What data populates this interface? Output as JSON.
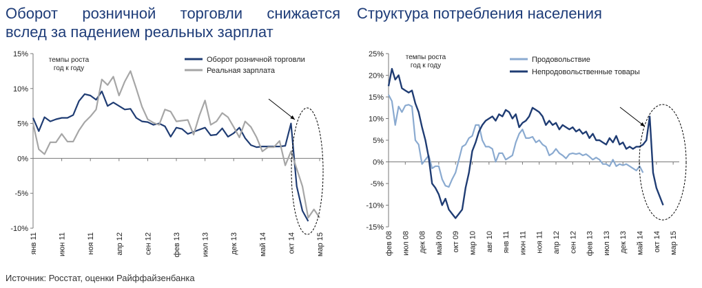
{
  "titles": {
    "left_line1": "Оборот розничной торговли снижается",
    "left_line2": "вслед за падением реальных зарплат",
    "right": "Структура потребления населения"
  },
  "source": "Источник: Росстат, оценки Райффайзенбанка",
  "colors": {
    "dark": "#1f3c73",
    "gray": "#a6a6a6",
    "light": "#8aaad0"
  },
  "chart_data": [
    {
      "type": "line",
      "title": "Оборот розничной торговли снижается вслед за падением реальных зарплат",
      "note_line1": "темпы роста",
      "note_line2": "год к году",
      "ylim": [
        -10,
        15
      ],
      "yticks": [
        -10,
        -5,
        0,
        5,
        10,
        15
      ],
      "ytick_labels": [
        "-10%",
        "-5%",
        "0%",
        "5%",
        "10%",
        "15%"
      ],
      "xticks": [
        {
          "i": 0,
          "label": "янв 11"
        },
        {
          "i": 5,
          "label": "июн 11"
        },
        {
          "i": 10,
          "label": "ноя 11"
        },
        {
          "i": 15,
          "label": "апр 12"
        },
        {
          "i": 20,
          "label": "сен 12"
        },
        {
          "i": 25,
          "label": "фев 13"
        },
        {
          "i": 30,
          "label": "июл 13"
        },
        {
          "i": 35,
          "label": "дек 13"
        },
        {
          "i": 40,
          "label": "май 14"
        },
        {
          "i": 45,
          "label": "окт 14"
        },
        {
          "i": 50,
          "label": "мар 15"
        }
      ],
      "series": [
        {
          "name": "Оборот розничной торговли",
          "color": "#1f3c73",
          "width": 2.2,
          "values": [
            5.8,
            3.9,
            5.9,
            5.3,
            5.6,
            5.8,
            5.8,
            6.2,
            8.2,
            9.2,
            9.0,
            8.4,
            9.6,
            7.5,
            8.0,
            7.5,
            7.0,
            7.1,
            5.8,
            5.3,
            5.2,
            4.8,
            5.0,
            4.6,
            3.1,
            4.4,
            4.2,
            3.5,
            3.8,
            4.1,
            4.4,
            3.3,
            3.4,
            4.3,
            3.1,
            3.6,
            4.4,
            2.9,
            1.9,
            1.6,
            1.7,
            1.7,
            1.7,
            1.7,
            1.8,
            5.0,
            -4.0,
            -7.5,
            -9.0
          ]
        },
        {
          "name": "Реальная зарплата",
          "color": "#a6a6a6",
          "width": 2.2,
          "values": [
            5.0,
            1.3,
            0.6,
            2.3,
            2.3,
            3.5,
            2.4,
            2.4,
            4.0,
            5.2,
            6.0,
            7.0,
            11.3,
            10.5,
            11.7,
            9.0,
            11.0,
            12.5,
            10.0,
            7.4,
            5.6,
            5.1,
            4.8,
            7.0,
            6.7,
            5.3,
            5.4,
            5.5,
            3.4,
            6.1,
            8.3,
            4.8,
            5.3,
            6.5,
            5.9,
            4.5,
            3.0,
            5.3,
            4.5,
            3.0,
            1.0,
            1.6,
            1.6,
            2.5,
            -1.0,
            1.0,
            -1.5,
            -4.0,
            -8.5,
            -7.3,
            -8.5
          ]
        }
      ]
    },
    {
      "type": "line",
      "title": "Структура потребления населения",
      "note_line1": "темпы роста",
      "note_line2": "год к году",
      "ylim": [
        -15,
        25
      ],
      "yticks": [
        -15,
        -10,
        -5,
        0,
        5,
        10,
        15,
        20,
        25
      ],
      "ytick_labels": [
        "-15%",
        "-10%",
        "-5%",
        "0%",
        "5%",
        "10%",
        "15%",
        "20%",
        "25%"
      ],
      "xticks": [
        {
          "i": 0,
          "label": "фев 08"
        },
        {
          "i": 5,
          "label": "июл 08"
        },
        {
          "i": 10,
          "label": "дек 08"
        },
        {
          "i": 15,
          "label": "май 09"
        },
        {
          "i": 20,
          "label": "окт 09"
        },
        {
          "i": 25,
          "label": "мар 10"
        },
        {
          "i": 30,
          "label": "авг 10"
        },
        {
          "i": 35,
          "label": "янв 11"
        },
        {
          "i": 40,
          "label": "июн 11"
        },
        {
          "i": 45,
          "label": "ноя 11"
        },
        {
          "i": 50,
          "label": "апр 12"
        },
        {
          "i": 55,
          "label": "сен 12"
        },
        {
          "i": 60,
          "label": "фев 13"
        },
        {
          "i": 65,
          "label": "июл 13"
        },
        {
          "i": 70,
          "label": "дек 13"
        },
        {
          "i": 75,
          "label": "май 14"
        },
        {
          "i": 80,
          "label": "окт 14"
        },
        {
          "i": 85,
          "label": "мар 15"
        }
      ],
      "series": [
        {
          "name": "Продовольствие",
          "color": "#8aaad0",
          "width": 2.2,
          "values": [
            15.5,
            14.0,
            8.5,
            12.8,
            11.5,
            13.0,
            13.2,
            12.8,
            5.0,
            4.0,
            -0.5,
            0.5,
            1.5,
            -1.5,
            -1.0,
            -1.0,
            -4.0,
            -5.5,
            -5.8,
            -4.0,
            -2.5,
            0.5,
            3.5,
            4.0,
            5.5,
            6.0,
            8.5,
            8.5,
            5.0,
            3.5,
            3.5,
            3.0,
            0.0,
            2.0,
            2.0,
            0.5,
            1.0,
            1.5,
            4.5,
            6.5,
            7.5,
            5.5,
            5.5,
            5.8,
            4.5,
            5.0,
            4.0,
            3.5,
            1.5,
            2.0,
            3.0,
            2.0,
            1.5,
            0.8,
            1.8,
            2.0,
            1.8,
            2.0,
            1.5,
            1.8,
            1.2,
            0.5,
            1.0,
            0.5,
            -0.5,
            -0.5,
            -1.0,
            0.5,
            -1.0,
            -0.5,
            -0.8,
            -0.5,
            -1.0,
            -1.5,
            -2.0,
            -1.0,
            -2.5
          ]
        },
        {
          "name": "Непродовольственные товары",
          "color": "#1f3c73",
          "width": 2.4,
          "values": [
            17.5,
            21.5,
            19.0,
            20.0,
            17.0,
            16.5,
            16.0,
            16.5,
            13.5,
            11.5,
            8.0,
            5.0,
            1.0,
            -5.0,
            -6.0,
            -7.5,
            -10.0,
            -8.5,
            -11.0,
            -12.0,
            -13.0,
            -12.0,
            -11.0,
            -6.0,
            -2.5,
            2.5,
            4.5,
            7.0,
            8.5,
            9.5,
            10.0,
            10.5,
            9.5,
            11.0,
            10.5,
            12.0,
            11.5,
            10.0,
            11.0,
            8.0,
            9.0,
            9.5,
            10.5,
            12.5,
            12.0,
            11.5,
            10.5,
            8.5,
            9.5,
            8.5,
            9.0,
            7.5,
            8.5,
            8.0,
            7.5,
            8.0,
            7.0,
            7.5,
            6.5,
            7.0,
            5.5,
            6.5,
            5.0,
            5.0,
            4.5,
            4.0,
            5.5,
            4.5,
            6.0,
            4.0,
            4.5,
            3.0,
            3.5,
            3.0,
            3.5,
            3.5,
            4.0,
            5.0,
            10.5,
            -2.5,
            -6.0,
            -8.0,
            -10.0
          ]
        }
      ]
    }
  ]
}
